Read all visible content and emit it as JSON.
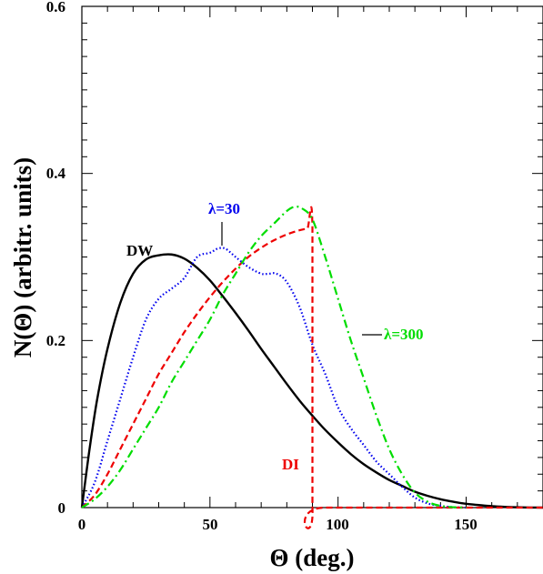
{
  "chart_data": {
    "type": "line",
    "xlabel": "Θ (deg.)",
    "ylabel": "N(Θ) (arbitr. units)",
    "xlim": [
      0,
      180
    ],
    "ylim": [
      0,
      0.6
    ],
    "x_ticks": [
      "0",
      "50",
      "100",
      "150"
    ],
    "y_ticks": [
      "0",
      "0.2",
      "0.4",
      "0.6"
    ],
    "grid": false,
    "series": [
      {
        "name": "DW",
        "color": "#000000",
        "dash": "solid",
        "x": [
          0,
          3,
          6,
          10,
          15,
          20,
          25,
          30,
          35,
          40,
          45,
          50,
          55,
          60,
          65,
          70,
          75,
          80,
          85,
          90,
          95,
          100,
          105,
          110,
          115,
          120,
          125,
          130,
          135,
          140,
          145,
          150,
          155,
          160,
          165,
          170,
          175,
          180
        ],
        "y": [
          0,
          0.07,
          0.13,
          0.19,
          0.245,
          0.28,
          0.297,
          0.302,
          0.303,
          0.298,
          0.287,
          0.272,
          0.253,
          0.233,
          0.212,
          0.19,
          0.169,
          0.148,
          0.128,
          0.11,
          0.093,
          0.078,
          0.064,
          0.052,
          0.042,
          0.033,
          0.026,
          0.019,
          0.014,
          0.01,
          0.007,
          0.0045,
          0.003,
          0.0017,
          0.0009,
          0.0004,
          0.0001,
          0
        ]
      },
      {
        "name": "λ=30",
        "color": "#0000ee",
        "dash": "dotted",
        "x": [
          0,
          5,
          10,
          15,
          20,
          25,
          30,
          35,
          40,
          45,
          50,
          53,
          56,
          60,
          65,
          70,
          73,
          76,
          80,
          85,
          90,
          95,
          100,
          105,
          110,
          115,
          120,
          125,
          130,
          135,
          140,
          145,
          150
        ],
        "y": [
          0,
          0.03,
          0.08,
          0.13,
          0.18,
          0.225,
          0.25,
          0.262,
          0.275,
          0.3,
          0.305,
          0.31,
          0.31,
          0.3,
          0.288,
          0.28,
          0.28,
          0.28,
          0.27,
          0.24,
          0.195,
          0.16,
          0.12,
          0.095,
          0.075,
          0.055,
          0.04,
          0.025,
          0.012,
          0.005,
          0.002,
          0.0005,
          0
        ]
      },
      {
        "name": "DI",
        "color": "#ee0000",
        "dash": "dashed",
        "x": [
          0,
          5,
          10,
          15,
          20,
          25,
          30,
          35,
          40,
          45,
          50,
          55,
          60,
          65,
          70,
          75,
          80,
          85,
          88,
          90,
          90,
          95,
          180
        ],
        "y": [
          0,
          0.015,
          0.04,
          0.07,
          0.1,
          0.13,
          0.16,
          0.185,
          0.21,
          0.232,
          0.252,
          0.27,
          0.286,
          0.3,
          0.311,
          0.32,
          0.327,
          0.332,
          0.334,
          0.335,
          0,
          0,
          0
        ]
      },
      {
        "name": "λ=300",
        "color": "#00dd00",
        "dash": "dashdot",
        "x": [
          0,
          5,
          10,
          15,
          20,
          25,
          30,
          35,
          40,
          45,
          50,
          55,
          60,
          65,
          70,
          75,
          80,
          83,
          86,
          90,
          95,
          100,
          105,
          110,
          115,
          120,
          125,
          130,
          135,
          140,
          145,
          150
        ],
        "y": [
          0,
          0.01,
          0.025,
          0.045,
          0.07,
          0.095,
          0.12,
          0.15,
          0.175,
          0.2,
          0.225,
          0.255,
          0.28,
          0.305,
          0.325,
          0.34,
          0.355,
          0.36,
          0.358,
          0.345,
          0.3,
          0.25,
          0.2,
          0.155,
          0.11,
          0.07,
          0.04,
          0.018,
          0.007,
          0.002,
          0.0005,
          0
        ]
      }
    ],
    "annotations": [
      {
        "text": "DW",
        "color": "#000000"
      },
      {
        "text": "λ=30",
        "color": "#0000ee"
      },
      {
        "text": "λ=300",
        "color": "#00dd00"
      },
      {
        "text": "DI",
        "color": "#ee0000"
      }
    ]
  }
}
